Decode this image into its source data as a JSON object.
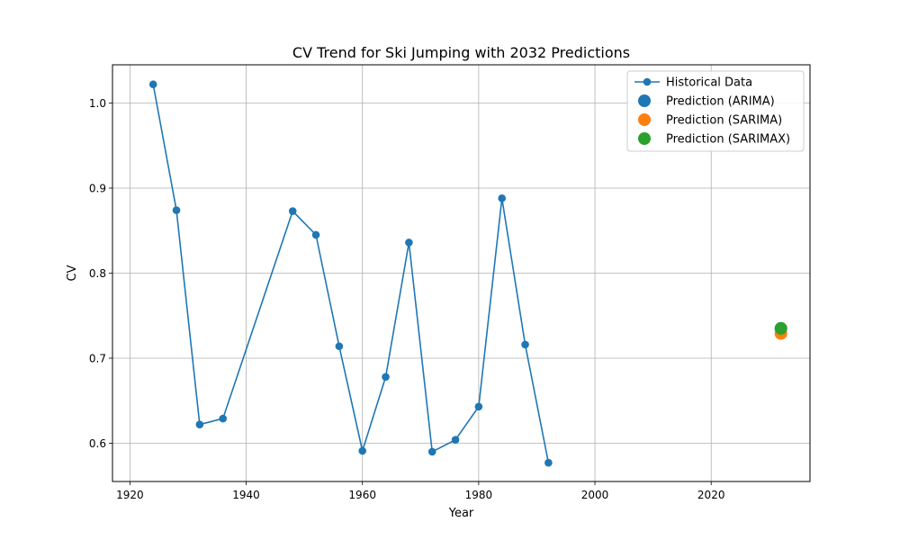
{
  "chart_data": {
    "type": "line",
    "title": "CV Trend for Ski Jumping with 2032 Predictions",
    "xlabel": "Year",
    "ylabel": "CV",
    "xlim": [
      1917,
      2037
    ],
    "ylim": [
      0.555,
      1.045
    ],
    "xticks": [
      1920,
      1940,
      1960,
      1980,
      2000,
      2020
    ],
    "yticks": [
      0.6,
      0.7,
      0.8,
      0.9,
      1.0
    ],
    "ytick_labels": [
      "0.6",
      "0.7",
      "0.8",
      "0.9",
      "1.0"
    ],
    "grid": true,
    "legend_position": "top-right",
    "series": [
      {
        "name": "Historical Data",
        "kind": "line-marker",
        "color": "#1f77b4",
        "x": [
          1924,
          1928,
          1932,
          1936,
          1948,
          1952,
          1956,
          1960,
          1964,
          1968,
          1972,
          1976,
          1980,
          1984,
          1988,
          1992
        ],
        "y": [
          1.022,
          0.874,
          0.622,
          0.629,
          0.873,
          0.845,
          0.714,
          0.591,
          0.678,
          0.836,
          0.59,
          0.604,
          0.643,
          0.888,
          0.716,
          0.577
        ]
      },
      {
        "name": "Prediction (ARIMA)",
        "kind": "point",
        "color": "#1f77b4",
        "x": [
          2032
        ],
        "y": [
          0.735
        ]
      },
      {
        "name": "Prediction (SARIMA)",
        "kind": "point",
        "color": "#ff7f0e",
        "x": [
          2032
        ],
        "y": [
          0.729
        ]
      },
      {
        "name": "Prediction (SARIMAX)",
        "kind": "point",
        "color": "#2ca02c",
        "x": [
          2032
        ],
        "y": [
          0.735
        ]
      }
    ]
  }
}
